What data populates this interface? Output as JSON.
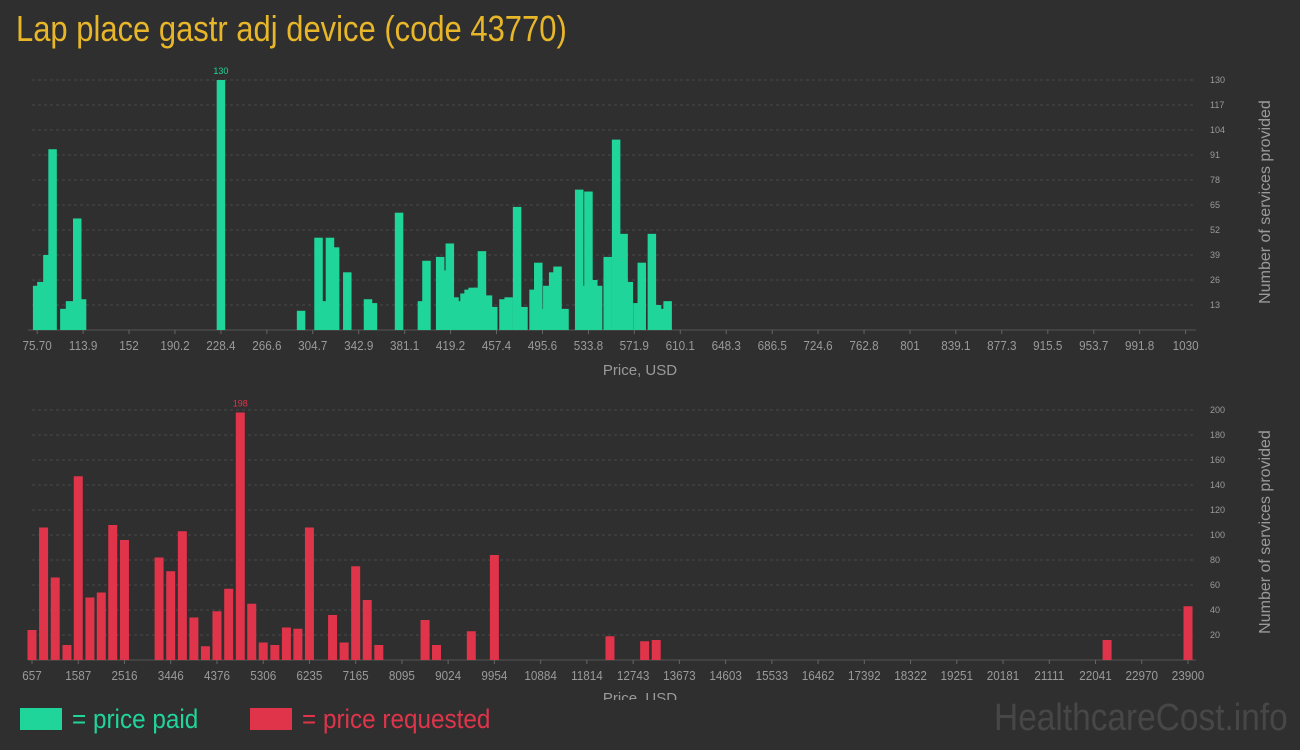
{
  "title": "Lap place gastr adj device (code 43770)",
  "colors": {
    "paid": "#1fd59a",
    "requested": "#e0344a",
    "title": "#e8b629",
    "axis_text": "#9a9a9a",
    "grid": "#4a4a4a",
    "background": "#2f2f2f"
  },
  "legend": {
    "paid_label": "= price paid",
    "requested_label": "= price requested"
  },
  "watermark": "HealthcareCost.info",
  "chart_data": [
    {
      "type": "bar",
      "name": "price paid",
      "xlabel": "Price, USD",
      "ylabel": "Number of services provided",
      "xlim": [
        71.4,
        1032
      ],
      "ylim": [
        0,
        130
      ],
      "x_ticks": [
        "75.70",
        "113.9",
        "152",
        "190.2",
        "228.4",
        "266.6",
        "304.7",
        "342.9",
        "381.1",
        "419.2",
        "457.4",
        "495.6",
        "533.8",
        "571.9",
        "610.1",
        "648.3",
        "686.5",
        "724.6",
        "762.8",
        "801",
        "839.1",
        "877.3",
        "915.5",
        "953.7",
        "991.8",
        "1030"
      ],
      "x_tick_values": [
        75.7,
        113.9,
        152,
        190.2,
        228.4,
        266.6,
        304.7,
        342.9,
        381.1,
        419.2,
        457.4,
        495.6,
        533.8,
        571.9,
        610.1,
        648.3,
        686.5,
        724.6,
        762.8,
        801,
        839.1,
        877.3,
        915.5,
        953.7,
        991.8,
        1030
      ],
      "y_ticks": [
        13,
        26,
        39,
        52,
        65,
        78,
        91,
        104,
        117,
        130
      ],
      "peak_label": "130",
      "x": [
        75.7,
        79.2,
        84.2,
        88.5,
        98.3,
        103,
        109,
        113,
        228.4,
        295,
        309.5,
        315.5,
        319,
        323.3,
        333.4,
        350.6,
        354.7,
        376.4,
        395.4,
        399.2,
        410.6,
        414.7,
        418.6,
        422.5,
        426.8,
        430.8,
        434.2,
        437.6,
        441.7,
        445.3,
        450.3,
        454.7,
        463.2,
        467.5,
        474.5,
        479.8,
        488.2,
        492.1,
        496.5,
        499.6,
        504.5,
        508.1,
        513.9,
        526.1,
        529.5,
        533.8,
        537.8,
        541.8,
        549.8,
        556.8,
        563,
        567.3,
        574.5,
        578.1,
        586.5,
        590.8,
        594.7,
        599.6,
        607,
        611.3,
        618.8,
        624.9,
        631.3,
        635.5,
        640.7,
        649,
        653.1
      ],
      "values": [
        23,
        25,
        39,
        94,
        11,
        15,
        58,
        16,
        130,
        10,
        48,
        15,
        48,
        43,
        30,
        16,
        14,
        61,
        15,
        36,
        38,
        31,
        45,
        17,
        15,
        19,
        21,
        22,
        22,
        41,
        18,
        12,
        16,
        17,
        64,
        12,
        21,
        35,
        11,
        23,
        30,
        33,
        11,
        73,
        23,
        72,
        26,
        23,
        38,
        99,
        50,
        25,
        14,
        35,
        50,
        13,
        11,
        15,
        0,
        0,
        0,
        0,
        0,
        0,
        0,
        0,
        0
      ]
    },
    {
      "type": "bar",
      "name": "price requested",
      "xlabel": "Price, USD",
      "ylabel": "Number of services provided",
      "xlim": [
        657,
        23900
      ],
      "ylim": [
        0,
        200
      ],
      "x_ticks": [
        "657",
        "1587",
        "2516",
        "3446",
        "4376",
        "5306",
        "6235",
        "7165",
        "8095",
        "9024",
        "9954",
        "10884",
        "11814",
        "12743",
        "13673",
        "14603",
        "15533",
        "16462",
        "17392",
        "18322",
        "19251",
        "20181",
        "21111",
        "22041",
        "22970",
        "23900"
      ],
      "x_tick_values": [
        657,
        1587,
        2516,
        3446,
        4376,
        5306,
        6235,
        7165,
        8095,
        9024,
        9954,
        10884,
        11814,
        12743,
        13673,
        14603,
        15533,
        16462,
        17392,
        18322,
        19251,
        20181,
        21111,
        22041,
        22970,
        23900
      ],
      "y_ticks": [
        20,
        40,
        60,
        80,
        100,
        120,
        140,
        160,
        180,
        200
      ],
      "peak_label": "198",
      "x": [
        657,
        890,
        1124,
        1360,
        1587,
        1822,
        2050,
        2280,
        2516,
        3212,
        3446,
        3680,
        3912,
        4144,
        4376,
        4612,
        4845,
        5075,
        5306,
        5540,
        5772,
        6003,
        6235,
        6700,
        6933,
        7165,
        7397,
        7630,
        8560,
        8790,
        9490,
        9954,
        12278,
        12975,
        13208,
        22273,
        23900
      ],
      "values": [
        24,
        106,
        66,
        12,
        147,
        50,
        54,
        108,
        96,
        82,
        71,
        103,
        34,
        11,
        39,
        57,
        198,
        45,
        14,
        12,
        26,
        25,
        106,
        36,
        14,
        75,
        48,
        12,
        32,
        12,
        23,
        84,
        19,
        15,
        16,
        16,
        43
      ]
    }
  ]
}
